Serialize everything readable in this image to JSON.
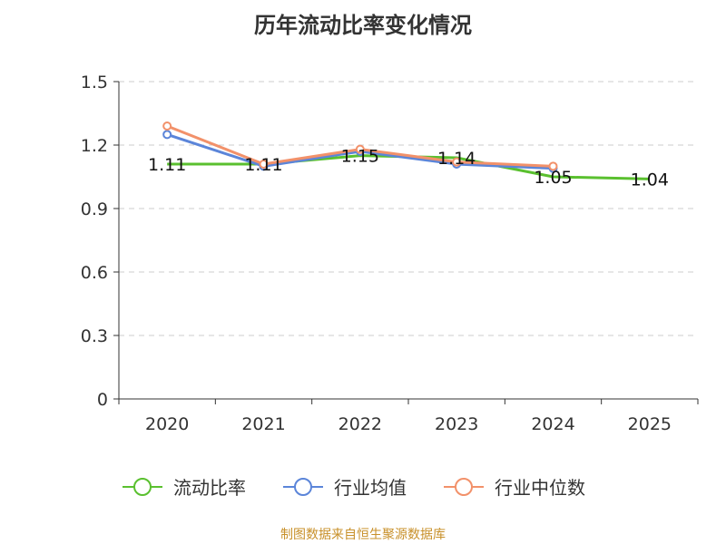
{
  "title": "历年流动比率变化情况",
  "source": "制图数据来自恒生聚源数据库",
  "colors": {
    "current_ratio": "#5ac02f",
    "industry_mean": "#5b85d9",
    "industry_median": "#f2916a",
    "grid": "#cccccc",
    "axis": "#333333",
    "text": "#333333"
  },
  "chart_data": {
    "type": "line",
    "title": "历年流动比率变化情况",
    "xlabel": "",
    "ylabel": "",
    "categories": [
      "2020",
      "2021",
      "2022",
      "2023",
      "2024",
      "2025"
    ],
    "ylim": [
      0,
      1.5
    ],
    "yticks": [
      0,
      0.3,
      0.6,
      0.9,
      1.2,
      1.5
    ],
    "ytick_labels": [
      "0",
      "0.3",
      "0.6",
      "0.9",
      "1.2",
      "1.5"
    ],
    "grid": true,
    "legend_position": "bottom-center",
    "series": [
      {
        "name": "流动比率",
        "color_key": "current_ratio",
        "values": [
          1.11,
          1.11,
          1.15,
          1.14,
          1.05,
          1.04
        ],
        "labels": [
          "1.11",
          "1.11",
          "1.15",
          "1.14",
          "1.05",
          "1.04"
        ],
        "show_labels": true,
        "show_markers": false
      },
      {
        "name": "行业均值",
        "color_key": "industry_mean",
        "values": [
          1.25,
          1.1,
          1.17,
          1.11,
          1.09,
          null
        ],
        "show_labels": false,
        "show_markers": true
      },
      {
        "name": "行业中位数",
        "color_key": "industry_median",
        "values": [
          1.29,
          1.11,
          1.18,
          1.12,
          1.1,
          null
        ],
        "show_labels": false,
        "show_markers": true
      }
    ]
  }
}
